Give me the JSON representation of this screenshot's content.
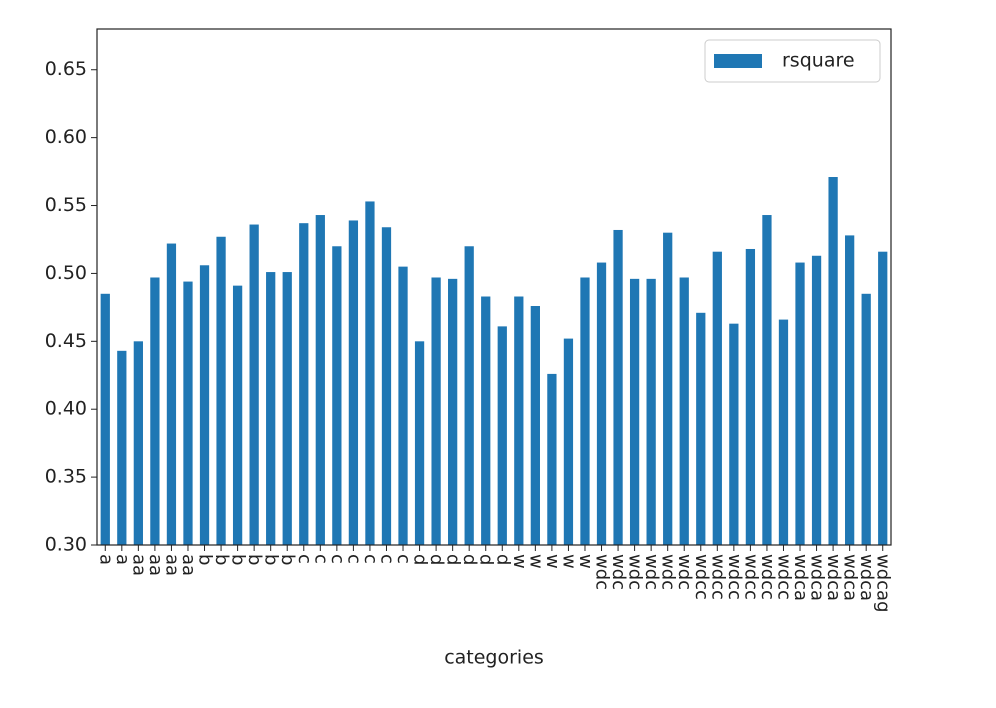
{
  "chart_data": {
    "type": "bar",
    "xlabel": "categories",
    "categories": [
      "a",
      "a",
      "aa",
      "aa",
      "aa",
      "aa",
      "b",
      "b",
      "b",
      "b",
      "b",
      "b",
      "c",
      "c",
      "c",
      "c",
      "c",
      "c",
      "c",
      "d",
      "d",
      "d",
      "d",
      "d",
      "d",
      "w",
      "w",
      "w",
      "w",
      "w",
      "wdc",
      "wdc",
      "wdc",
      "wdc",
      "wdc",
      "wdc",
      "wdcc",
      "wdcc",
      "wdcc",
      "wdcc",
      "wdcc",
      "wdcc",
      "wdca",
      "wdca",
      "wdca",
      "wdca",
      "wdca",
      "wdcag"
    ],
    "series": [
      {
        "name": "rsquare",
        "color": "#1f77b4",
        "values": [
          0.485,
          0.443,
          0.45,
          0.497,
          0.522,
          0.494,
          0.506,
          0.527,
          0.491,
          0.536,
          0.501,
          0.501,
          0.537,
          0.543,
          0.52,
          0.539,
          0.553,
          0.534,
          0.505,
          0.45,
          0.497,
          0.496,
          0.52,
          0.483,
          0.461,
          0.483,
          0.476,
          0.426,
          0.452,
          0.497,
          0.508,
          0.532,
          0.496,
          0.496,
          0.53,
          0.497,
          0.471,
          0.516,
          0.463,
          0.518,
          0.543,
          0.466,
          0.508,
          0.513,
          0.571,
          0.528,
          0.485,
          0.516
        ]
      }
    ],
    "ylim": [
      0.3,
      0.68
    ],
    "yticks": [
      {
        "value": 0.3,
        "label": "0.30"
      },
      0.35,
      {
        "value": 0.4,
        "label": "0.40"
      },
      0.45,
      {
        "value": 0.5,
        "label": "0.50"
      },
      0.55,
      {
        "value": 0.6,
        "label": "0.60"
      },
      0.65
    ],
    "legend": "upper right"
  }
}
